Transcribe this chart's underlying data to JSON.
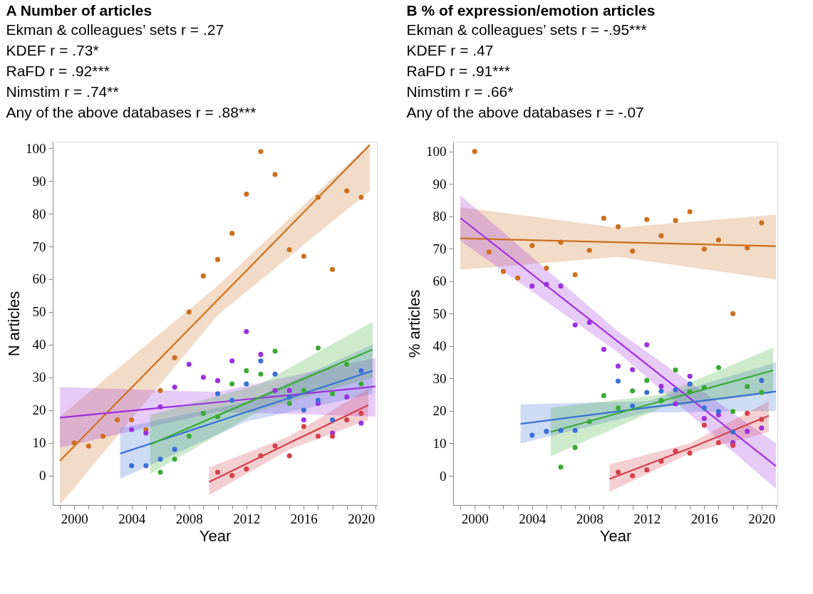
{
  "chart_data": [
    {
      "type": "scatter",
      "title": "A  Number of articles",
      "annotations": [
        "Ekman & colleagues’ sets r = .27",
        "KDEF r = .73*",
        "RaFD r = .92***",
        "Nimstim r = .74**",
        "Any of the above databases r = .88***"
      ],
      "xlabel": "Year",
      "ylabel": "N articles",
      "xlim": [
        1998.5,
        2021.1
      ],
      "ylim": [
        -9,
        102
      ],
      "xticks": [
        2000,
        {
          "value": 1999,
          "label": null
        },
        {
          "value": 2001,
          "label": null
        },
        {
          "value": 2002,
          "label": null
        },
        {
          "value": 2003,
          "label": null
        },
        2004,
        {
          "value": 2005,
          "label": null
        },
        {
          "value": 2006,
          "label": null
        },
        {
          "value": 2007,
          "label": null
        },
        2008,
        {
          "value": 2009,
          "label": null
        },
        {
          "value": 2010,
          "label": null
        },
        {
          "value": 2011,
          "label": null
        },
        2012,
        {
          "value": 2013,
          "label": null
        },
        {
          "value": 2014,
          "label": null
        },
        {
          "value": 2015,
          "label": null
        },
        2016,
        {
          "value": 2017,
          "label": null
        },
        {
          "value": 2018,
          "label": null
        },
        {
          "value": 2019,
          "label": null
        },
        2020,
        {
          "value": 2021,
          "label": null
        }
      ],
      "yticks": [
        0,
        10,
        20,
        30,
        40,
        50,
        60,
        70,
        80,
        90,
        100
      ],
      "marker": "circle",
      "line_style": "solid",
      "grid": false,
      "series": [
        {
          "type": "line",
          "marker": "none",
          "color": "#cc6f1e",
          "x": [
            1999,
            2010,
            2020.6
          ],
          "values": [
            4.5,
            53.7,
            101
          ],
          "lower": [
            -9,
            49,
            87
          ],
          "upper": [
            18,
            58,
            101.5
          ]
        },
        {
          "type": "line",
          "marker": "none",
          "color": "#9b30e0",
          "x": [
            1999,
            2010,
            2021
          ],
          "values": [
            17.7,
            22.4,
            27.2
          ],
          "lower": [
            8.5,
            19.5,
            18
          ],
          "upper": [
            27,
            25.5,
            36
          ]
        },
        {
          "type": "line",
          "marker": "none",
          "color": "#3a6fd8",
          "x": [
            2003.2,
            2012,
            2020.8
          ],
          "values": [
            6.7,
            19.4,
            32
          ],
          "lower": [
            -1,
            16.5,
            25
          ],
          "upper": [
            14.5,
            22.5,
            40
          ]
        },
        {
          "type": "line",
          "marker": "none",
          "color": "#3aaa35",
          "x": [
            2005.3,
            2013,
            2020.8
          ],
          "values": [
            9.5,
            24,
            38.5
          ],
          "lower": [
            0.5,
            20,
            30
          ],
          "upper": [
            18.5,
            28,
            47
          ]
        },
        {
          "type": "line",
          "marker": "none",
          "color": "#d43f4a",
          "x": [
            2009.4,
            2015,
            2020.5
          ],
          "values": [
            -2,
            10,
            21.5
          ],
          "lower": [
            -6,
            8,
            17
          ],
          "upper": [
            2.5,
            12,
            26.5
          ]
        },
        {
          "color": "#cc6f1e",
          "x": [
            2000,
            2001,
            2002,
            2003,
            2004,
            2005,
            2006,
            2007,
            2008,
            2009,
            2010,
            2011,
            2012,
            2013,
            2014,
            2015,
            2016,
            2017,
            2018,
            2019,
            2020
          ],
          "values": [
            10,
            9,
            12,
            17,
            17,
            14,
            26,
            36,
            50,
            61,
            66,
            74,
            86,
            99,
            92,
            69,
            67,
            85,
            63,
            87,
            85
          ]
        },
        {
          "color": "#9b30e0",
          "x": [
            2004,
            2005,
            2006,
            2007,
            2008,
            2009,
            2010,
            2011,
            2012,
            2013,
            2014,
            2015,
            2016,
            2017,
            2018,
            2019,
            2020
          ],
          "values": [
            14,
            13,
            21,
            27,
            34,
            30,
            29,
            35,
            44,
            37,
            26,
            26,
            17,
            22,
            13,
            24,
            16
          ]
        },
        {
          "color": "#3a6fd8",
          "x": [
            2004,
            2005,
            2006,
            2007,
            2010,
            2011,
            2012,
            2013,
            2014,
            2015,
            2016,
            2017,
            2018,
            2020
          ],
          "values": [
            3,
            3,
            5,
            8,
            25,
            23,
            28,
            35,
            31,
            24,
            20,
            23,
            17,
            32
          ]
        },
        {
          "color": "#3aaa35",
          "x": [
            2006,
            2007,
            2008,
            2009,
            2010,
            2011,
            2012,
            2013,
            2014,
            2015,
            2016,
            2017,
            2018,
            2019,
            2020
          ],
          "values": [
            1,
            5,
            12,
            19,
            18,
            28,
            32,
            31,
            38,
            22,
            26,
            39,
            25,
            34,
            28
          ]
        },
        {
          "color": "#d43f4a",
          "x": [
            2010,
            2011,
            2012,
            2013,
            2014,
            2015,
            2016,
            2017,
            2018,
            2019,
            2020
          ],
          "values": [
            1,
            0,
            2,
            6,
            9,
            6,
            15,
            12,
            12,
            17,
            19
          ]
        }
      ]
    },
    {
      "type": "scatter",
      "title": "B  % of expression/emotion articles",
      "annotations": [
        "Ekman & colleagues’ sets r = -.95***",
        "KDEF r = .47",
        "RaFD r = .91***",
        "Nimstim r = .66*",
        "Any of the above databases r = -.07"
      ],
      "xlabel": "Year",
      "ylabel": "% articles",
      "xlim": [
        1998.5,
        2021.1
      ],
      "ylim": [
        -9,
        103
      ],
      "xticks": [
        2000,
        {
          "value": 1999,
          "label": null
        },
        {
          "value": 2001,
          "label": null
        },
        {
          "value": 2002,
          "label": null
        },
        {
          "value": 2003,
          "label": null
        },
        2004,
        {
          "value": 2005,
          "label": null
        },
        {
          "value": 2006,
          "label": null
        },
        {
          "value": 2007,
          "label": null
        },
        2008,
        {
          "value": 2009,
          "label": null
        },
        {
          "value": 2010,
          "label": null
        },
        {
          "value": 2011,
          "label": null
        },
        2012,
        {
          "value": 2013,
          "label": null
        },
        {
          "value": 2014,
          "label": null
        },
        {
          "value": 2015,
          "label": null
        },
        2016,
        {
          "value": 2017,
          "label": null
        },
        {
          "value": 2018,
          "label": null
        },
        {
          "value": 2019,
          "label": null
        },
        2020,
        {
          "value": 2021,
          "label": null
        }
      ],
      "yticks": [
        0,
        10,
        20,
        30,
        40,
        50,
        60,
        70,
        80,
        90,
        100
      ],
      "marker": "circle",
      "line_style": "solid",
      "grid": false,
      "series": [
        {
          "type": "line",
          "marker": "none",
          "color": "#cc6f1e",
          "x": [
            1999,
            2010,
            2021
          ],
          "values": [
            73.2,
            72,
            70.8
          ],
          "lower": [
            63.5,
            67.5,
            60.5
          ],
          "upper": [
            82.8,
            76.5,
            80.5
          ]
        },
        {
          "type": "line",
          "marker": "none",
          "color": "#9b30e0",
          "x": [
            1999,
            2010,
            2021
          ],
          "values": [
            79.5,
            41.3,
            3
          ],
          "lower": [
            72.5,
            38,
            -4
          ],
          "upper": [
            86.5,
            44.5,
            10
          ]
        },
        {
          "type": "line",
          "marker": "none",
          "color": "#3a6fd8",
          "x": [
            2003.2,
            2012,
            2021
          ],
          "values": [
            16,
            21,
            26
          ],
          "lower": [
            10,
            19.5,
            20
          ],
          "upper": [
            22,
            23,
            35
          ]
        },
        {
          "type": "line",
          "marker": "none",
          "color": "#3aaa35",
          "x": [
            2005.3,
            2013,
            2020.8
          ],
          "values": [
            13.5,
            23,
            32.5
          ],
          "lower": [
            6,
            21,
            25.5
          ],
          "upper": [
            21,
            25,
            39.5
          ]
        },
        {
          "type": "line",
          "marker": "none",
          "color": "#d43f4a",
          "x": [
            2009.4,
            2015,
            2020.5
          ],
          "values": [
            -1,
            8.5,
            18.5
          ],
          "lower": [
            -5,
            7,
            13.5
          ],
          "upper": [
            3.5,
            10,
            23
          ]
        },
        {
          "color": "#cc6f1e",
          "x": [
            2000,
            2001,
            2002,
            2003,
            2004,
            2005,
            2006,
            2007,
            2008,
            2009,
            2010,
            2011,
            2012,
            2013,
            2014,
            2015,
            2016,
            2017,
            2018,
            2019,
            2020
          ],
          "values": [
            100,
            69,
            63,
            61,
            71,
            64,
            72,
            62,
            69.5,
            79.4,
            76.8,
            69.3,
            79,
            74,
            78.7,
            81.4,
            69.9,
            72.7,
            50,
            70.3,
            78
          ]
        },
        {
          "color": "#9b30e0",
          "x": [
            2004,
            2005,
            2006,
            2007,
            2008,
            2009,
            2010,
            2011,
            2012,
            2013,
            2014,
            2015,
            2016,
            2017,
            2018,
            2019,
            2020
          ],
          "values": [
            58.5,
            59,
            58.5,
            46.5,
            47.3,
            39,
            33.8,
            32.7,
            40.4,
            27.6,
            22.2,
            30.7,
            17.7,
            18.8,
            10.2,
            13.7,
            14.7
          ]
        },
        {
          "color": "#3a6fd8",
          "x": [
            2004,
            2005,
            2006,
            2007,
            2010,
            2011,
            2012,
            2013,
            2014,
            2015,
            2016,
            2017,
            2018,
            2020
          ],
          "values": [
            12.5,
            13.7,
            14,
            14,
            29.2,
            21.5,
            25.7,
            26.1,
            26.5,
            28.3,
            20.9,
            19.8,
            13.5,
            29.4
          ]
        },
        {
          "color": "#3aaa35",
          "x": [
            2006,
            2007,
            2008,
            2009,
            2010,
            2011,
            2012,
            2013,
            2014,
            2015,
            2016,
            2017,
            2018,
            2019,
            2020
          ],
          "values": [
            2.7,
            8.7,
            16.7,
            24.7,
            20.9,
            26.2,
            29.4,
            23.2,
            32.6,
            25.9,
            27.2,
            33.4,
            19.8,
            27.5,
            25.7
          ]
        },
        {
          "color": "#d43f4a",
          "x": [
            2010,
            2011,
            2012,
            2013,
            2014,
            2015,
            2016,
            2017,
            2018,
            2019,
            2020
          ],
          "values": [
            1.1,
            0,
            1.8,
            4.5,
            7.6,
            7,
            15.6,
            10.2,
            9.4,
            19.3,
            17.4
          ]
        }
      ]
    }
  ]
}
